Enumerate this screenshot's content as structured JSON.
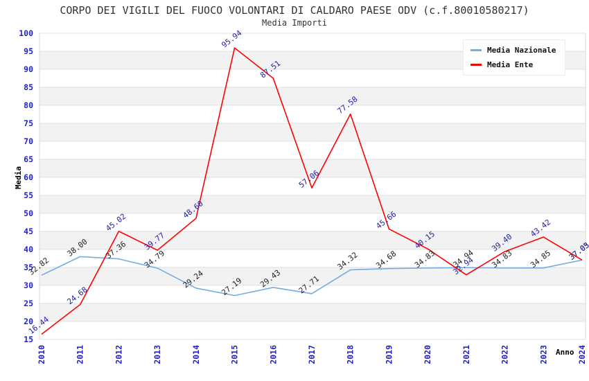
{
  "title": "CORPO DEI VIGILI DEL FUOCO VOLONTARI DI CALDARO PAESE ODV (c.f.80010580217)",
  "subtitle": "Media Importi",
  "axes": {
    "y_title": "Media",
    "x_title": "Anno",
    "tick_color": "#2222cc"
  },
  "legend": {
    "items": [
      {
        "label": "Media Nazionale",
        "color": "#6cb2e8"
      },
      {
        "label": "Media Ente",
        "color": "#ff0000"
      }
    ]
  },
  "colors": {
    "band_gray": "#f2f2f2",
    "gridline": "#e0e0e0",
    "frame": "#d9d9d9",
    "title_text": "#333333"
  },
  "chart_data": {
    "type": "line",
    "title": "CORPO DEI VIGILI DEL FUOCO VOLONTARI DI CALDARO PAESE ODV (c.f.80010580217)",
    "subtitle": "Media Importi",
    "xlabel": "Anno",
    "ylabel": "Media",
    "x": [
      2010,
      2011,
      2012,
      2013,
      2014,
      2015,
      2016,
      2017,
      2018,
      2019,
      2020,
      2021,
      2022,
      2023,
      2024
    ],
    "ylim": [
      15,
      100
    ],
    "ytick_step": 5,
    "grid": "horizontal-bands",
    "legend_position": "top-right",
    "series": [
      {
        "name": "Media Nazionale",
        "color": "#74abe2",
        "label_color": "#222222",
        "values": [
          32.82,
          38.0,
          37.36,
          34.79,
          29.24,
          27.19,
          29.43,
          27.71,
          34.32,
          34.68,
          34.83,
          34.94,
          34.83,
          34.85,
          37.03
        ]
      },
      {
        "name": "Media Ente",
        "color": "#ff0000",
        "label_color": "#2222aa",
        "values": [
          16.44,
          24.68,
          45.02,
          39.77,
          48.6,
          95.94,
          87.51,
          57.06,
          77.58,
          45.66,
          40.15,
          32.94,
          39.4,
          43.42,
          37.05
        ]
      }
    ]
  }
}
